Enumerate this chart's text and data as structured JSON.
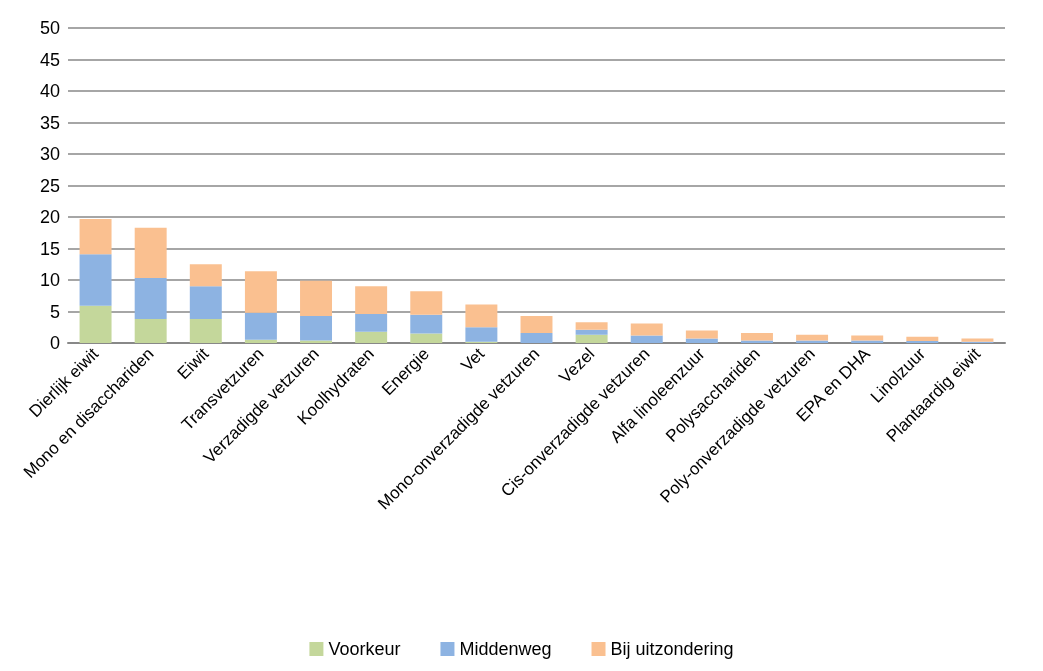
{
  "chart_data": {
    "type": "bar",
    "stacked": true,
    "categories": [
      "Dierlijk eiwit",
      "Mono en disacchariden",
      "Eiwit",
      "Transvetzuren",
      "Verzadigde vetzuren",
      "Koolhydraten",
      "Energie",
      "Vet",
      "Mono-onverzadigde vetzuren",
      "Vezel",
      "Cis-onverzadigde vetzuren",
      "Alfa linoleenzuur",
      "Polysacchariden",
      "Poly-onverzadigde vetzuren",
      "EPA en DHA",
      "Linolzuur",
      "Plantaardig eiwit"
    ],
    "series": [
      {
        "name": "Voorkeur",
        "color": "#c4d79b",
        "values": [
          5.9,
          3.8,
          3.8,
          0.5,
          0.4,
          1.8,
          1.5,
          0.2,
          null,
          1.3,
          null,
          null,
          null,
          null,
          null,
          null,
          null
        ]
      },
      {
        "name": "Middenweg",
        "color": "#8db3e2",
        "values": [
          8.2,
          6.5,
          5.2,
          4.3,
          3.9,
          2.8,
          3.0,
          2.3,
          1.6,
          0.8,
          1.2,
          0.7,
          0.4,
          0.4,
          0.4,
          0.3,
          0.2
        ]
      },
      {
        "name": "Bij uitzondering",
        "color": "#fac090",
        "values": [
          5.6,
          8.0,
          3.5,
          6.6,
          5.6,
          4.4,
          3.7,
          3.6,
          2.7,
          1.2,
          1.9,
          1.3,
          1.2,
          0.9,
          0.8,
          0.7,
          0.5
        ]
      }
    ],
    "ylim": [
      0,
      50
    ],
    "yticks": [
      0,
      5,
      10,
      15,
      20,
      25,
      30,
      35,
      40,
      45,
      50
    ],
    "grid": "y",
    "legend": "bottom"
  }
}
